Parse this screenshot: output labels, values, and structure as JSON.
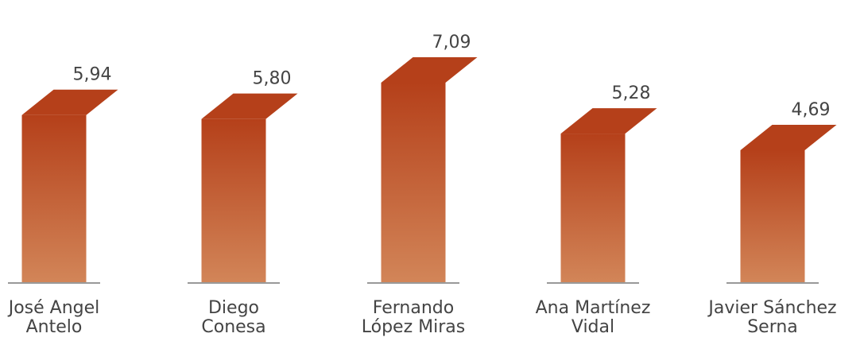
{
  "chart_data": {
    "type": "bar",
    "categories": [
      "José Angel\nAntelo",
      "Diego\nConesa",
      "Fernando\nLópez Miras",
      "Ana Martínez\nVidal",
      "Javier Sánchez\nSerna"
    ],
    "values": [
      5.94,
      5.8,
      7.09,
      5.28,
      4.69
    ],
    "value_labels": [
      "5,94",
      "5,80",
      "7,09",
      "5,28",
      "4,69"
    ],
    "color": "#b5401a"
  }
}
